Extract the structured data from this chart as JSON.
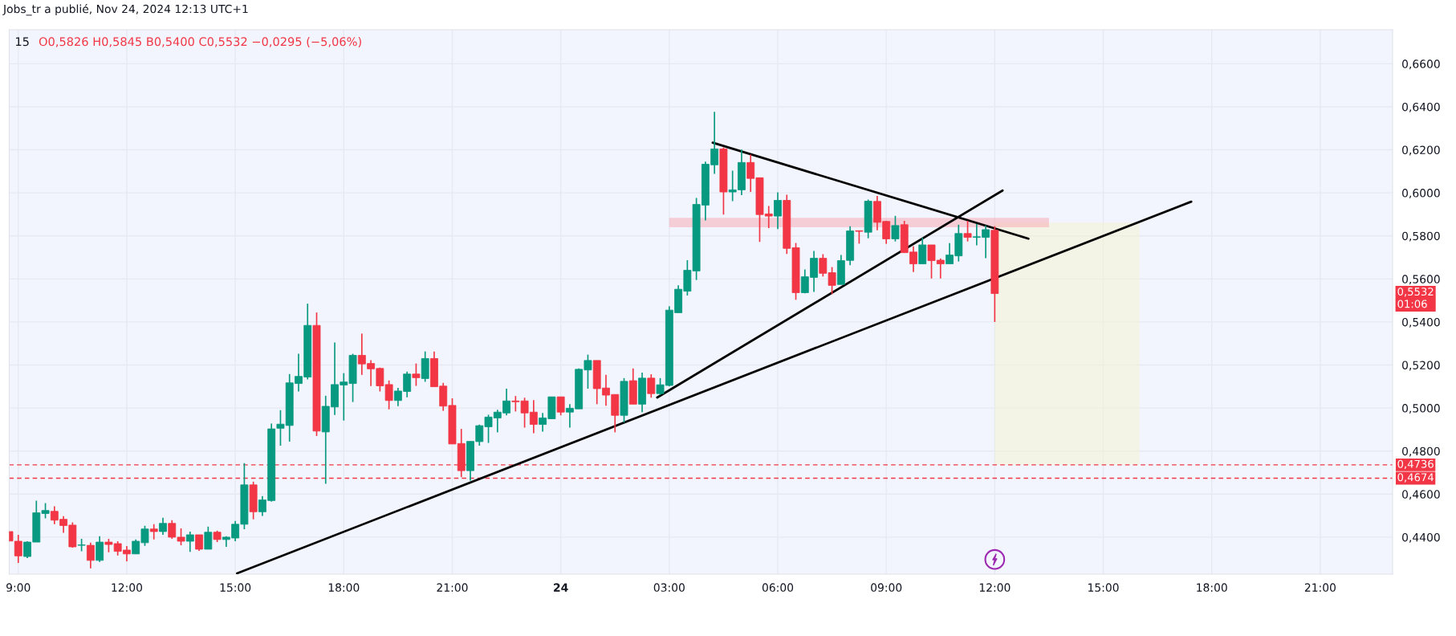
{
  "chart_data": {
    "type": "candlestick",
    "title": "15",
    "subtitle": "O0,5826 H0,5845 B0,5400 C0,5532 −0,0295 (−5,06%)",
    "annotations": [
      "Jobs_tr a publié, Nov 24, 2024 12:13 UTC+1",
      "0,5532\n01:06"
    ],
    "series": [
      {
        "type": "line",
        "x": [
          "2024-11-24T12:00",
          "2024-11-24T16:00"
        ],
        "values": [
          null,
          null
        ],
        "lower": [
          0.4736,
          0.4736
        ],
        "upper": [
          0.5862,
          0.5862
        ],
        "color": "#f4f4e6"
      },
      {
        "type": "line",
        "x": [
          "2024-11-24T03:00",
          "2024-11-24T13:30"
        ],
        "values": [
          null,
          null
        ],
        "lower": [
          0.584,
          0.584
        ],
        "upper": [
          0.5884,
          0.5884
        ],
        "color": "#f5cdd6"
      },
      {
        "type": "line",
        "x": [
          "2024-11-23T15:03",
          "2024-11-24T17:26"
        ],
        "values": [
          0.4232,
          0.5959
        ],
        "color": "#000000"
      },
      {
        "type": "line",
        "x": [
          "2024-11-24T02:40",
          "2024-11-24T12:13"
        ],
        "values": [
          0.5049,
          0.6011
        ],
        "color": "#000000"
      },
      {
        "type": "line",
        "x": [
          "2024-11-24T04:12",
          "2024-11-24T12:56"
        ],
        "values": [
          0.6233,
          0.5787
        ],
        "color": "#000000"
      },
      {
        "x": [
          "2024-11-23T08:45",
          "2024-11-23T09:00",
          "2024-11-23T09:15",
          "2024-11-23T09:30",
          "2024-11-23T09:45",
          "2024-11-23T10:00",
          "2024-11-23T10:15",
          "2024-11-23T10:30",
          "2024-11-23T10:45",
          "2024-11-23T11:00",
          "2024-11-23T11:15",
          "2024-11-23T11:30",
          "2024-11-23T11:45",
          "2024-11-23T12:00",
          "2024-11-23T12:15",
          "2024-11-23T12:30",
          "2024-11-23T12:45",
          "2024-11-23T13:00",
          "2024-11-23T13:15",
          "2024-11-23T13:30",
          "2024-11-23T13:45",
          "2024-11-23T14:00",
          "2024-11-23T14:15",
          "2024-11-23T14:30",
          "2024-11-23T14:45",
          "2024-11-23T15:00",
          "2024-11-23T15:15",
          "2024-11-23T15:30",
          "2024-11-23T15:45",
          "2024-11-23T16:00",
          "2024-11-23T16:15",
          "2024-11-23T16:30",
          "2024-11-23T16:45",
          "2024-11-23T17:00",
          "2024-11-23T17:15",
          "2024-11-23T17:30",
          "2024-11-23T17:45",
          "2024-11-23T18:00",
          "2024-11-23T18:15",
          "2024-11-23T18:30",
          "2024-11-23T18:45",
          "2024-11-23T19:00",
          "2024-11-23T19:15",
          "2024-11-23T19:30",
          "2024-11-23T19:45",
          "2024-11-23T20:00",
          "2024-11-23T20:15",
          "2024-11-23T20:30",
          "2024-11-23T20:45",
          "2024-11-23T21:00",
          "2024-11-23T21:15",
          "2024-11-23T21:30",
          "2024-11-23T21:45",
          "2024-11-23T22:00",
          "2024-11-23T22:15",
          "2024-11-23T22:30",
          "2024-11-23T22:45",
          "2024-11-23T23:00",
          "2024-11-23T23:15",
          "2024-11-23T23:30",
          "2024-11-23T23:45",
          "2024-11-24T00:00",
          "2024-11-24T00:15",
          "2024-11-24T00:30",
          "2024-11-24T00:45",
          "2024-11-24T01:00",
          "2024-11-24T01:15",
          "2024-11-24T01:30",
          "2024-11-24T01:45",
          "2024-11-24T02:00",
          "2024-11-24T02:15",
          "2024-11-24T02:30",
          "2024-11-24T02:45",
          "2024-11-24T03:00",
          "2024-11-24T03:15",
          "2024-11-24T03:30",
          "2024-11-24T03:45",
          "2024-11-24T04:00",
          "2024-11-24T04:15",
          "2024-11-24T04:30",
          "2024-11-24T04:45",
          "2024-11-24T05:00",
          "2024-11-24T05:15",
          "2024-11-24T05:30",
          "2024-11-24T05:45",
          "2024-11-24T06:00",
          "2024-11-24T06:15",
          "2024-11-24T06:30",
          "2024-11-24T06:45",
          "2024-11-24T07:00",
          "2024-11-24T07:15",
          "2024-11-24T07:30",
          "2024-11-24T07:45",
          "2024-11-24T08:00",
          "2024-11-24T08:15",
          "2024-11-24T08:30",
          "2024-11-24T08:45",
          "2024-11-24T09:00",
          "2024-11-24T09:15",
          "2024-11-24T09:30",
          "2024-11-24T09:45",
          "2024-11-24T10:00",
          "2024-11-24T10:15",
          "2024-11-24T10:30",
          "2024-11-24T10:45",
          "2024-11-24T11:00",
          "2024-11-24T11:15",
          "2024-11-24T11:30",
          "2024-11-24T11:45",
          "2024-11-24T12:00"
        ],
        "ohlc": [
          [
            0.4426,
            0.4426,
            0.4382,
            0.4382
          ],
          [
            0.4381,
            0.4411,
            0.428,
            0.4313
          ],
          [
            0.431,
            0.4381,
            0.4303,
            0.4377
          ],
          [
            0.4377,
            0.4569,
            0.4377,
            0.4513
          ],
          [
            0.451,
            0.4558,
            0.4487,
            0.4524
          ],
          [
            0.452,
            0.4543,
            0.446,
            0.4479
          ],
          [
            0.4483,
            0.4498,
            0.442,
            0.4454
          ],
          [
            0.4456,
            0.4469,
            0.4351,
            0.4355
          ],
          [
            0.4362,
            0.4392,
            0.4334,
            0.4364
          ],
          [
            0.4362,
            0.4374,
            0.4255,
            0.4292
          ],
          [
            0.4292,
            0.4404,
            0.4285,
            0.4377
          ],
          [
            0.4377,
            0.4392,
            0.433,
            0.4366
          ],
          [
            0.437,
            0.4381,
            0.4315,
            0.4334
          ],
          [
            0.434,
            0.4359,
            0.4288,
            0.4322
          ],
          [
            0.4322,
            0.4389,
            0.4322,
            0.4381
          ],
          [
            0.4374,
            0.4453,
            0.436,
            0.4438
          ],
          [
            0.4438,
            0.446,
            0.4389,
            0.4426
          ],
          [
            0.4426,
            0.449,
            0.4411,
            0.4464
          ],
          [
            0.4464,
            0.4479,
            0.4392,
            0.44
          ],
          [
            0.44,
            0.4441,
            0.4362,
            0.4381
          ],
          [
            0.4381,
            0.4426,
            0.4332,
            0.4411
          ],
          [
            0.4411,
            0.4411,
            0.4336,
            0.4344
          ],
          [
            0.4344,
            0.4449,
            0.4344,
            0.4423
          ],
          [
            0.4423,
            0.443,
            0.4377,
            0.4389
          ],
          [
            0.4389,
            0.4404,
            0.4355,
            0.44
          ],
          [
            0.4396,
            0.4475,
            0.4381,
            0.446
          ],
          [
            0.446,
            0.4744,
            0.4437,
            0.4643
          ],
          [
            0.4643,
            0.4658,
            0.4483,
            0.4518
          ],
          [
            0.4518,
            0.4591,
            0.4499,
            0.4573
          ],
          [
            0.457,
            0.4928,
            0.4565,
            0.4903
          ],
          [
            0.4906,
            0.499,
            0.4825,
            0.4925
          ],
          [
            0.4919,
            0.5158,
            0.4844,
            0.5117
          ],
          [
            0.5114,
            0.5252,
            0.5077,
            0.5147
          ],
          [
            0.5144,
            0.5485,
            0.5133,
            0.5384
          ],
          [
            0.5384,
            0.5444,
            0.487,
            0.4893
          ],
          [
            0.4889,
            0.5057,
            0.4648,
            0.5008
          ],
          [
            0.5005,
            0.5305,
            0.4968,
            0.5109
          ],
          [
            0.5107,
            0.5162,
            0.4942,
            0.5121
          ],
          [
            0.5114,
            0.5252,
            0.5028,
            0.5245
          ],
          [
            0.5245,
            0.5346,
            0.5154,
            0.5205
          ],
          [
            0.5207,
            0.5222,
            0.5102,
            0.5182
          ],
          [
            0.5184,
            0.5188,
            0.5077,
            0.5103
          ],
          [
            0.5109,
            0.5128,
            0.4994,
            0.5035
          ],
          [
            0.5035,
            0.5094,
            0.5009,
            0.5079
          ],
          [
            0.5077,
            0.5169,
            0.505,
            0.5158
          ],
          [
            0.5158,
            0.5207,
            0.5103,
            0.5141
          ],
          [
            0.5137,
            0.5263,
            0.5122,
            0.523
          ],
          [
            0.523,
            0.5263,
            0.5099,
            0.5099
          ],
          [
            0.5102,
            0.5117,
            0.4987,
            0.5009
          ],
          [
            0.5012,
            0.5045,
            0.4833,
            0.4833
          ],
          [
            0.4835,
            0.4903,
            0.4679,
            0.4709
          ],
          [
            0.4709,
            0.4845,
            0.4663,
            0.4845
          ],
          [
            0.4844,
            0.4923,
            0.4825,
            0.4918
          ],
          [
            0.4913,
            0.4969,
            0.4838,
            0.4958
          ],
          [
            0.4954,
            0.4992,
            0.4887,
            0.4981
          ],
          [
            0.4977,
            0.509,
            0.4966,
            0.5033
          ],
          [
            0.5033,
            0.5056,
            0.4984,
            0.5029
          ],
          [
            0.5033,
            0.5048,
            0.4909,
            0.4977
          ],
          [
            0.4981,
            0.5037,
            0.4883,
            0.4924
          ],
          [
            0.4924,
            0.4977,
            0.489,
            0.4954
          ],
          [
            0.495,
            0.5052,
            0.495,
            0.5052
          ],
          [
            0.5052,
            0.5052,
            0.4966,
            0.4981
          ],
          [
            0.4981,
            0.5018,
            0.4909,
            0.4999
          ],
          [
            0.4996,
            0.5184,
            0.4996,
            0.518
          ],
          [
            0.5177,
            0.5248,
            0.509,
            0.5221
          ],
          [
            0.5221,
            0.5221,
            0.5018,
            0.509
          ],
          [
            0.5093,
            0.5154,
            0.5011,
            0.506
          ],
          [
            0.5063,
            0.5063,
            0.4887,
            0.4966
          ],
          [
            0.4966,
            0.5139,
            0.4932,
            0.5124
          ],
          [
            0.5127,
            0.5184,
            0.5018,
            0.5018
          ],
          [
            0.5018,
            0.5165,
            0.4981,
            0.5139
          ],
          [
            0.5139,
            0.5157,
            0.5048,
            0.5067
          ],
          [
            0.5067,
            0.5139,
            0.506,
            0.5108
          ],
          [
            0.5105,
            0.5473,
            0.5101,
            0.5455
          ],
          [
            0.5443,
            0.557,
            0.5443,
            0.5552
          ],
          [
            0.5543,
            0.5687,
            0.5523,
            0.564
          ],
          [
            0.5637,
            0.5976,
            0.5595,
            0.5946
          ],
          [
            0.5943,
            0.6145,
            0.5872,
            0.6133
          ],
          [
            0.613,
            0.6376,
            0.6088,
            0.6204
          ],
          [
            0.6204,
            0.6211,
            0.5899,
            0.6004
          ],
          [
            0.6004,
            0.6103,
            0.5961,
            0.6014
          ],
          [
            0.6014,
            0.6201,
            0.5989,
            0.6141
          ],
          [
            0.6141,
            0.6178,
            0.6004,
            0.6067
          ],
          [
            0.607,
            0.607,
            0.5772,
            0.5899
          ],
          [
            0.5902,
            0.5939,
            0.5836,
            0.5892
          ],
          [
            0.5892,
            0.6002,
            0.5832,
            0.5965
          ],
          [
            0.5965,
            0.5991,
            0.5716,
            0.5742
          ],
          [
            0.5745,
            0.5767,
            0.5503,
            0.5536
          ],
          [
            0.5536,
            0.5644,
            0.5533,
            0.561
          ],
          [
            0.5607,
            0.573,
            0.554,
            0.5696
          ],
          [
            0.5696,
            0.5715,
            0.5611,
            0.5626
          ],
          [
            0.5629,
            0.5655,
            0.5529,
            0.557
          ],
          [
            0.5574,
            0.5711,
            0.5574,
            0.5685
          ],
          [
            0.5686,
            0.5845,
            0.5664,
            0.5823
          ],
          [
            0.5824,
            0.5824,
            0.5764,
            0.5821
          ],
          [
            0.5817,
            0.5969,
            0.5789,
            0.5961
          ],
          [
            0.596,
            0.5986,
            0.5826,
            0.5863
          ],
          [
            0.5867,
            0.587,
            0.5763,
            0.5786
          ],
          [
            0.5786,
            0.5893,
            0.5774,
            0.5848
          ],
          [
            0.5852,
            0.587,
            0.5722,
            0.5722
          ],
          [
            0.5725,
            0.5751,
            0.5632,
            0.567
          ],
          [
            0.567,
            0.5792,
            0.567,
            0.5758
          ],
          [
            0.5758,
            0.5758,
            0.5602,
            0.5685
          ],
          [
            0.5687,
            0.5695,
            0.5602,
            0.567
          ],
          [
            0.567,
            0.5766,
            0.567,
            0.5711
          ],
          [
            0.5707,
            0.5852,
            0.5681,
            0.5811
          ],
          [
            0.5811,
            0.587,
            0.5774,
            0.5793
          ],
          [
            0.5793,
            0.5855,
            0.5756,
            0.5796
          ],
          [
            0.5793,
            0.5848,
            0.5696,
            0.5829
          ],
          [
            0.5826,
            0.5845,
            0.54,
            0.5532
          ]
        ],
        "colors": [
          "#f23645",
          "#f23645",
          "#089981",
          "#089981",
          "#089981",
          "#f23645",
          "#f23645",
          "#f23645",
          "#089981",
          "#f23645",
          "#089981",
          "#f23645",
          "#f23645",
          "#f23645",
          "#089981",
          "#089981",
          "#f23645",
          "#089981",
          "#f23645",
          "#f23645",
          "#089981",
          "#f23645",
          "#089981",
          "#f23645",
          "#089981",
          "#089981",
          "#089981",
          "#f23645",
          "#089981",
          "#089981",
          "#089981",
          "#089981",
          "#089981",
          "#089981",
          "#f23645",
          "#089981",
          "#089981",
          "#089981",
          "#089981",
          "#f23645",
          "#f23645",
          "#f23645",
          "#f23645",
          "#089981",
          "#089981",
          "#f23645",
          "#089981",
          "#f23645",
          "#f23645",
          "#f23645",
          "#f23645",
          "#089981",
          "#089981",
          "#089981",
          "#089981",
          "#089981",
          "#f23645",
          "#f23645",
          "#f23645",
          "#089981",
          "#089981",
          "#f23645",
          "#089981",
          "#089981",
          "#089981",
          "#f23645",
          "#f23645",
          "#f23645",
          "#089981",
          "#f23645",
          "#089981",
          "#f23645",
          "#089981",
          "#089981",
          "#089981",
          "#089981",
          "#089981",
          "#089981",
          "#089981",
          "#f23645",
          "#089981",
          "#089981",
          "#f23645",
          "#f23645",
          "#f23645",
          "#089981",
          "#f23645",
          "#f23645",
          "#089981",
          "#089981",
          "#f23645",
          "#f23645",
          "#089981",
          "#089981",
          "#f23645",
          "#089981",
          "#f23645",
          "#f23645",
          "#089981",
          "#f23645",
          "#f23645",
          "#089981",
          "#f23645",
          "#f23645",
          "#089981",
          "#089981",
          "#f23645",
          "#089981",
          "#089981",
          "#f23645"
        ]
      }
    ],
    "xlim": [
      "2024-11-23T08:45",
      "2024-11-24T23:00"
    ],
    "xticks": [
      {
        "value": "2024-11-23T09:00",
        "label": "9:00"
      },
      {
        "value": "2024-11-23T12:00",
        "label": "12:00"
      },
      {
        "value": "2024-11-23T15:00",
        "label": "15:00"
      },
      {
        "value": "2024-11-23T18:00",
        "label": "18:00"
      },
      {
        "value": "2024-11-23T21:00",
        "label": "21:00"
      },
      {
        "value": "2024-11-24T00:00",
        "label": "24"
      },
      {
        "value": "2024-11-24T03:00",
        "label": "03:00"
      },
      {
        "value": "2024-11-24T06:00",
        "label": "06:00"
      },
      {
        "value": "2024-11-24T09:00",
        "label": "09:00"
      },
      {
        "value": "2024-11-24T12:00",
        "label": "12:00"
      },
      {
        "value": "2024-11-24T15:00",
        "label": "15:00"
      },
      {
        "value": "2024-11-24T18:00",
        "label": "18:00"
      },
      {
        "value": "2024-11-24T21:00",
        "label": "21:00"
      }
    ],
    "ylim": [
      0.4228,
      0.6758
    ],
    "yticks": [
      {
        "value": 0.44,
        "label": "0,4400"
      },
      {
        "value": 0.46,
        "label": "0,4600"
      },
      {
        "value": 0.48,
        "label": "0,4800"
      },
      {
        "value": 0.5,
        "label": "0,5000"
      },
      {
        "value": 0.52,
        "label": "0,5200"
      },
      {
        "value": 0.54,
        "label": "0,5400"
      },
      {
        "value": 0.56,
        "label": "0,5600"
      },
      {
        "value": 0.58,
        "label": "0,5800"
      },
      {
        "value": 0.6,
        "label": "0,6000"
      },
      {
        "value": 0.62,
        "label": "0,6200"
      },
      {
        "value": 0.64,
        "label": "0,6400"
      },
      {
        "value": 0.66,
        "label": "0,6600"
      }
    ],
    "grid": true,
    "ref_lines": [
      {
        "axis": "y",
        "value": 0.4736,
        "label": "0,4736",
        "color": "#f23645",
        "line_style": "dashed"
      },
      {
        "axis": "y",
        "value": 0.4674,
        "label": "0,4674",
        "color": "#f23645",
        "line_style": "dashed"
      }
    ]
  }
}
